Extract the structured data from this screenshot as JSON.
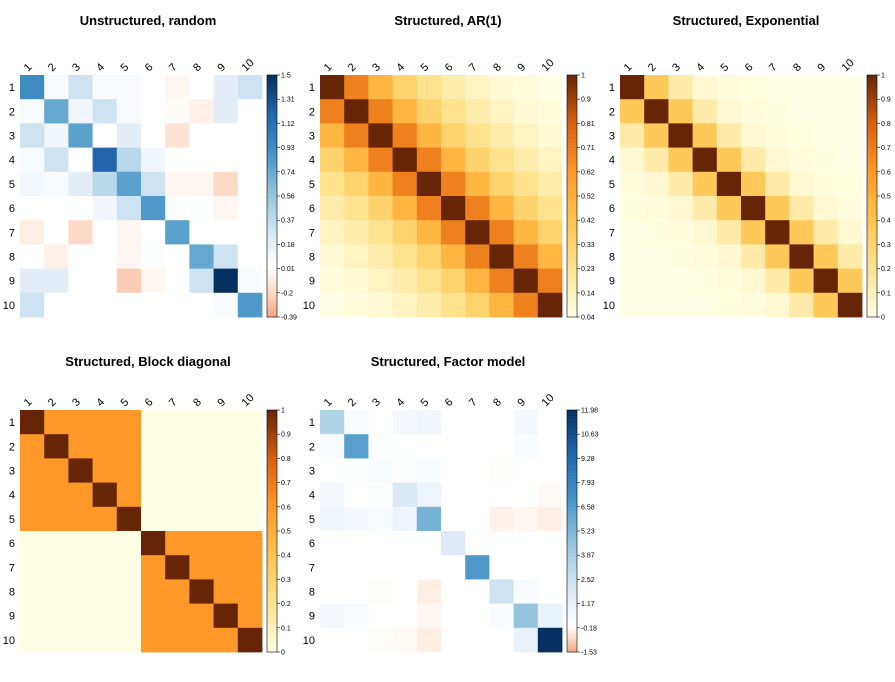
{
  "chart_data": [
    {
      "type": "heatmap",
      "title": "Unstructured, random",
      "labels": [
        "1",
        "2",
        "3",
        "4",
        "5",
        "6",
        "7",
        "8",
        "9",
        "10"
      ],
      "palette": "diverging",
      "legend_ticks": [
        "1.5",
        "1.31",
        "1.12",
        "0.93",
        "0.74",
        "0.56",
        "0.37",
        "0.18",
        "0.01",
        "-0.2",
        "-0.39"
      ],
      "vmin": -0.39,
      "vmax": 1.5,
      "matrix": [
        [
          0.95,
          0.05,
          0.3,
          0.05,
          0.05,
          0.0,
          -0.05,
          0.0,
          0.2,
          0.3
        ],
        [
          0.05,
          0.75,
          0.1,
          0.3,
          0.05,
          0.0,
          -0.02,
          -0.08,
          0.2,
          0.0
        ],
        [
          0.3,
          0.1,
          0.8,
          0.0,
          0.2,
          0.0,
          -0.15,
          0.0,
          0.0,
          0.0
        ],
        [
          0.05,
          0.3,
          0.0,
          1.2,
          0.4,
          0.1,
          0.0,
          0.0,
          0.0,
          0.0
        ],
        [
          0.08,
          0.05,
          0.2,
          0.4,
          0.8,
          0.3,
          -0.05,
          -0.05,
          -0.2,
          0.0
        ],
        [
          0.0,
          0.0,
          0.0,
          0.1,
          0.3,
          0.85,
          0.0,
          0.02,
          -0.05,
          0.0
        ],
        [
          -0.1,
          0.0,
          -0.2,
          0.0,
          -0.05,
          0.0,
          0.8,
          0.0,
          0.0,
          0.0
        ],
        [
          0.0,
          -0.08,
          0.0,
          0.0,
          -0.05,
          0.02,
          0.0,
          0.75,
          0.3,
          0.0
        ],
        [
          0.2,
          0.2,
          0.0,
          0.0,
          -0.25,
          -0.05,
          0.0,
          0.3,
          1.5,
          0.05
        ],
        [
          0.3,
          0.0,
          0.0,
          0.0,
          0.0,
          0.0,
          0.0,
          0.0,
          0.05,
          0.85
        ]
      ]
    },
    {
      "type": "heatmap",
      "title": "Structured, AR(1)",
      "labels": [
        "1",
        "2",
        "3",
        "4",
        "5",
        "6",
        "7",
        "8",
        "9",
        "10"
      ],
      "palette": "sequential",
      "legend_ticks": [
        "1",
        "0.9",
        "0.81",
        "0.71",
        "0.62",
        "0.52",
        "0.42",
        "0.33",
        "0.23",
        "0.14",
        "0.04"
      ],
      "vmin": 0.04,
      "vmax": 1,
      "matrix": [
        [
          1,
          0.7,
          0.49,
          0.34,
          0.24,
          0.17,
          0.12,
          0.08,
          0.06,
          0.04
        ],
        [
          0.7,
          1,
          0.7,
          0.49,
          0.34,
          0.24,
          0.17,
          0.12,
          0.08,
          0.06
        ],
        [
          0.49,
          0.7,
          1,
          0.7,
          0.49,
          0.34,
          0.24,
          0.17,
          0.12,
          0.08
        ],
        [
          0.34,
          0.49,
          0.7,
          1,
          0.7,
          0.49,
          0.34,
          0.24,
          0.17,
          0.12
        ],
        [
          0.24,
          0.34,
          0.49,
          0.7,
          1,
          0.7,
          0.49,
          0.34,
          0.24,
          0.17
        ],
        [
          0.17,
          0.24,
          0.34,
          0.49,
          0.7,
          1,
          0.7,
          0.49,
          0.34,
          0.24
        ],
        [
          0.12,
          0.17,
          0.24,
          0.34,
          0.49,
          0.7,
          1,
          0.7,
          0.49,
          0.34
        ],
        [
          0.08,
          0.12,
          0.17,
          0.24,
          0.34,
          0.49,
          0.7,
          1,
          0.7,
          0.49
        ],
        [
          0.06,
          0.08,
          0.12,
          0.17,
          0.24,
          0.34,
          0.49,
          0.7,
          1,
          0.7
        ],
        [
          0.04,
          0.06,
          0.08,
          0.12,
          0.17,
          0.24,
          0.34,
          0.49,
          0.7,
          1
        ]
      ]
    },
    {
      "type": "heatmap",
      "title": "Structured, Exponential",
      "labels": [
        "1",
        "2",
        "3",
        "4",
        "5",
        "6",
        "7",
        "8",
        "9",
        "10"
      ],
      "palette": "sequential",
      "legend_ticks": [
        "1",
        "0.9",
        "0.8",
        "0.7",
        "0.6",
        "0.5",
        "0.4",
        "0.3",
        "0.2",
        "0.1",
        "0"
      ],
      "vmin": 0,
      "vmax": 1,
      "matrix": [
        [
          1,
          0.37,
          0.14,
          0.05,
          0.02,
          0.01,
          0.0,
          0.0,
          0.0,
          0.0
        ],
        [
          0.37,
          1,
          0.37,
          0.14,
          0.05,
          0.02,
          0.01,
          0.0,
          0.0,
          0.0
        ],
        [
          0.14,
          0.37,
          1,
          0.37,
          0.14,
          0.05,
          0.02,
          0.01,
          0.0,
          0.0
        ],
        [
          0.05,
          0.14,
          0.37,
          1,
          0.37,
          0.14,
          0.05,
          0.02,
          0.01,
          0.0
        ],
        [
          0.02,
          0.05,
          0.14,
          0.37,
          1,
          0.37,
          0.14,
          0.05,
          0.02,
          0.01
        ],
        [
          0.01,
          0.02,
          0.05,
          0.14,
          0.37,
          1,
          0.37,
          0.14,
          0.05,
          0.02
        ],
        [
          0.0,
          0.01,
          0.02,
          0.05,
          0.14,
          0.37,
          1,
          0.37,
          0.14,
          0.05
        ],
        [
          0.0,
          0.0,
          0.01,
          0.02,
          0.05,
          0.14,
          0.37,
          1,
          0.37,
          0.14
        ],
        [
          0.0,
          0.0,
          0.0,
          0.01,
          0.02,
          0.05,
          0.14,
          0.37,
          1,
          0.37
        ],
        [
          0.0,
          0.0,
          0.0,
          0.0,
          0.01,
          0.02,
          0.05,
          0.14,
          0.37,
          1
        ]
      ]
    },
    {
      "type": "heatmap",
      "title": "Structured, Block diagonal",
      "labels": [
        "1",
        "2",
        "3",
        "4",
        "5",
        "6",
        "7",
        "8",
        "9",
        "10"
      ],
      "palette": "sequential",
      "legend_ticks": [
        "1",
        "0.9",
        "0.8",
        "0.7",
        "0.6",
        "0.5",
        "0.4",
        "0.3",
        "0.2",
        "0.1",
        "0"
      ],
      "vmin": 0,
      "vmax": 1,
      "matrix": [
        [
          1,
          0.6,
          0.6,
          0.6,
          0.6,
          0,
          0,
          0,
          0,
          0
        ],
        [
          0.6,
          1,
          0.6,
          0.6,
          0.6,
          0,
          0,
          0,
          0,
          0
        ],
        [
          0.6,
          0.6,
          1,
          0.6,
          0.6,
          0,
          0,
          0,
          0,
          0
        ],
        [
          0.6,
          0.6,
          0.6,
          1,
          0.6,
          0,
          0,
          0,
          0,
          0
        ],
        [
          0.6,
          0.6,
          0.6,
          0.6,
          1,
          0,
          0,
          0,
          0,
          0
        ],
        [
          0,
          0,
          0,
          0,
          0,
          1,
          0.6,
          0.6,
          0.6,
          0.6
        ],
        [
          0,
          0,
          0,
          0,
          0,
          0.6,
          1,
          0.6,
          0.6,
          0.6
        ],
        [
          0,
          0,
          0,
          0,
          0,
          0.6,
          0.6,
          1,
          0.6,
          0.6
        ],
        [
          0,
          0,
          0,
          0,
          0,
          0.6,
          0.6,
          0.6,
          1,
          0.6
        ],
        [
          0,
          0,
          0,
          0,
          0,
          0.6,
          0.6,
          0.6,
          0.6,
          1
        ]
      ]
    },
    {
      "type": "heatmap",
      "title": "Structured, Factor model",
      "labels": [
        "1",
        "2",
        "3",
        "4",
        "5",
        "6",
        "7",
        "8",
        "9",
        "10"
      ],
      "palette": "diverging",
      "legend_ticks": [
        "11.98",
        "10.63",
        "9.28",
        "7.93",
        "6.58",
        "5.23",
        "3.87",
        "2.52",
        "1.17",
        "-0.18",
        "-1.53"
      ],
      "vmin": -1.53,
      "vmax": 11.98,
      "matrix": [
        [
          3.5,
          0.4,
          0.0,
          0.6,
          0.8,
          0.0,
          0.0,
          0.0,
          0.6,
          0.0
        ],
        [
          0.4,
          6.5,
          0.2,
          0.0,
          0.0,
          0.0,
          0.0,
          0.0,
          0.3,
          0.0
        ],
        [
          0.0,
          0.2,
          0.3,
          0.2,
          0.3,
          0.0,
          0.0,
          -0.05,
          0.0,
          0.0
        ],
        [
          0.6,
          0.0,
          0.2,
          2.0,
          1.0,
          0.0,
          0.0,
          0.0,
          0.0,
          -0.1
        ],
        [
          0.8,
          0.6,
          0.4,
          1.0,
          5.5,
          0.0,
          0.0,
          -0.3,
          -0.2,
          -0.35
        ],
        [
          0.0,
          0.0,
          0.0,
          0.0,
          0.0,
          1.8,
          0.0,
          0.0,
          0.0,
          0.0
        ],
        [
          0.0,
          0.0,
          0.0,
          0.0,
          0.0,
          0.0,
          6.8,
          0.0,
          0.0,
          0.0
        ],
        [
          0.0,
          0.0,
          -0.05,
          0.0,
          -0.35,
          0.0,
          0.0,
          2.4,
          0.3,
          0.0
        ],
        [
          0.6,
          0.3,
          0.0,
          0.0,
          -0.2,
          0.0,
          0.0,
          0.3,
          4.5,
          1.2
        ],
        [
          0.0,
          0.0,
          -0.05,
          -0.1,
          -0.35,
          0.0,
          0.0,
          0.0,
          1.2,
          11.98
        ]
      ]
    }
  ],
  "colors": {
    "diverging_high": "#053061",
    "diverging_mid": "#ffffff",
    "diverging_low": "#f4a582",
    "sequential_low": "#ffffe5",
    "sequential_high": "#662506"
  }
}
